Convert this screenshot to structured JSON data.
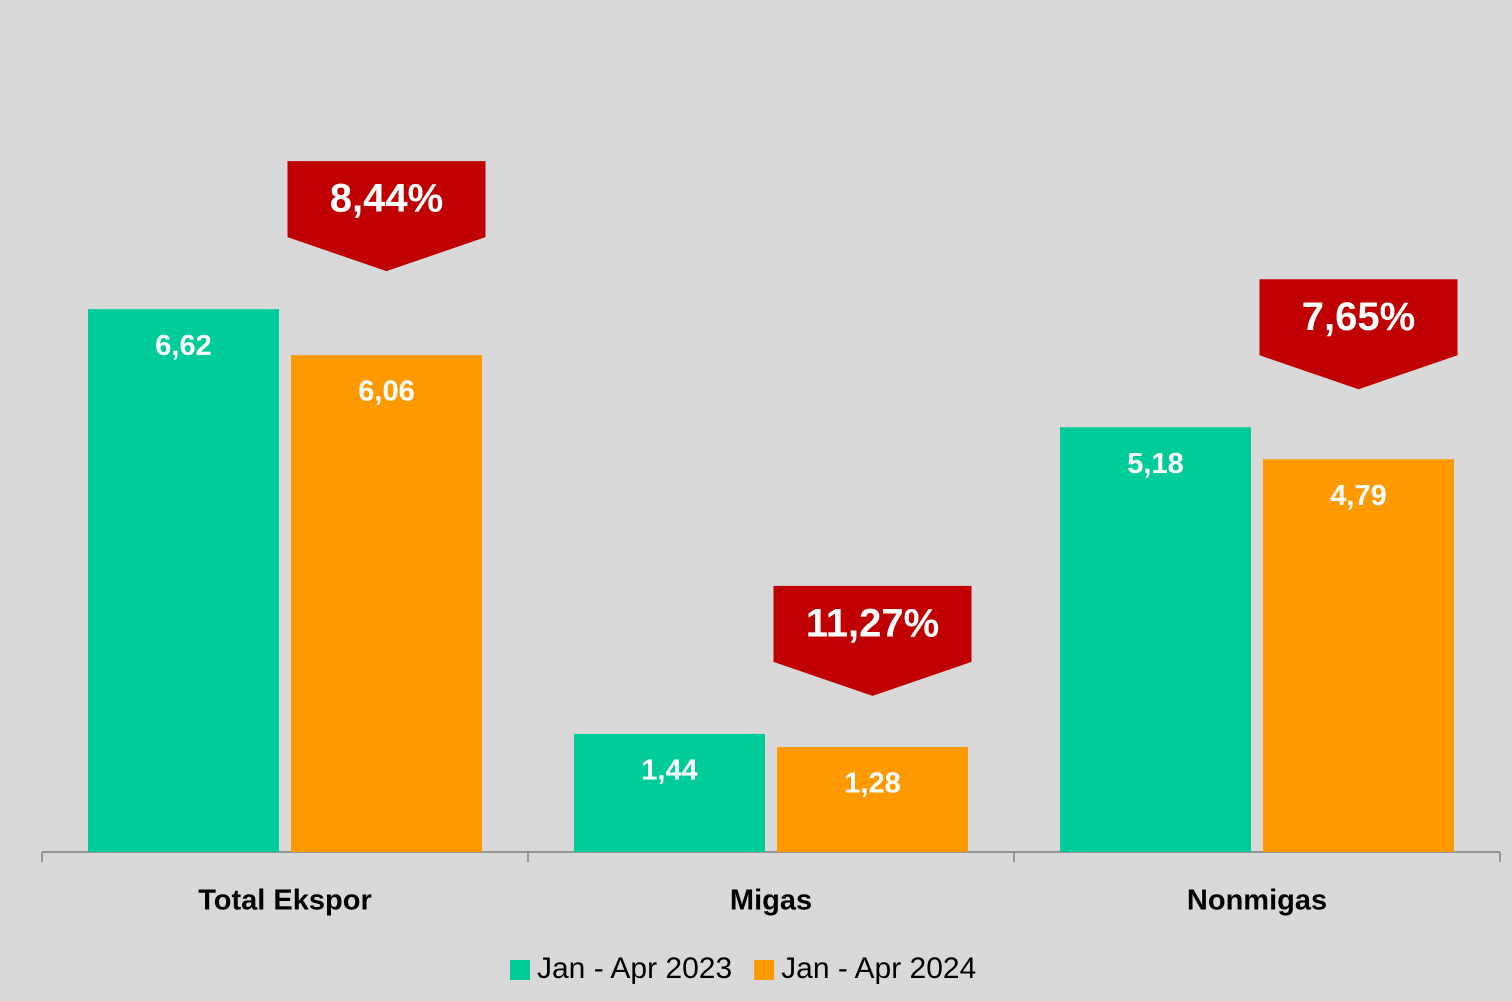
{
  "chart_data": {
    "type": "bar",
    "categories": [
      "Total Ekspor",
      "Migas",
      "Nonmigas"
    ],
    "series": [
      {
        "name": "Jan - Apr 2023",
        "color": "#00cc99",
        "values": [
          6.62,
          1.44,
          5.18
        ],
        "value_labels": [
          "6,62",
          "1,44",
          "5,18"
        ]
      },
      {
        "name": "Jan - Apr 2024",
        "color": "#ff9900",
        "values": [
          6.06,
          1.28,
          4.79
        ],
        "value_labels": [
          "6,06",
          "1,28",
          "4,79"
        ]
      }
    ],
    "annotations": [
      "8,44%",
      "11,27%",
      "7,65%"
    ],
    "annotation_color": "#c00000",
    "ylim": [
      0,
      8
    ],
    "background": "#d9d9d9",
    "legend": "bottom"
  }
}
